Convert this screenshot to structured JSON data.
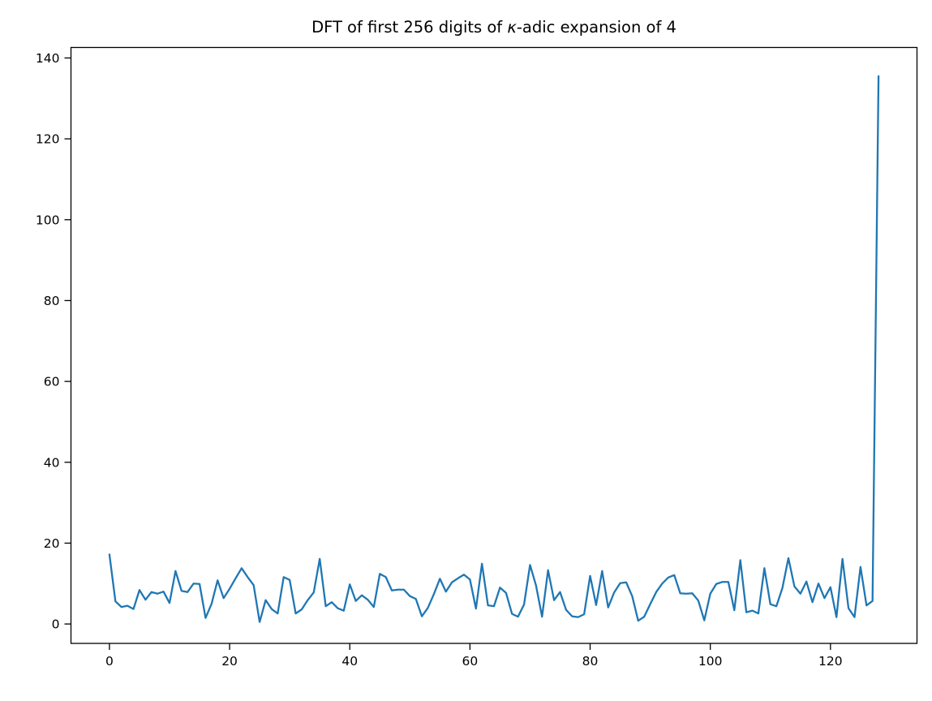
{
  "figure": {
    "background": "#ffffff"
  },
  "chart_data": {
    "type": "line",
    "title": "DFT of first 256 digits of κ-adic expansion of 4",
    "title_parts": {
      "prefix": "DFT of first 256 digits of ",
      "kappa": "κ",
      "suffix": "-adic expansion of 4"
    },
    "xlabel": "",
    "ylabel": "",
    "grid": false,
    "legend": false,
    "line_color": "#1f77b4",
    "spine_color": "#000000",
    "n_points": 129,
    "x_start": 0,
    "x_step": 1,
    "x_ticks": [
      0,
      20,
      40,
      60,
      80,
      100,
      120
    ],
    "y_ticks": [
      0,
      20,
      40,
      60,
      80,
      100,
      120,
      140
    ],
    "xlim": [
      -6.4,
      134.4
    ],
    "ylim": [
      -4.8,
      142.6
    ],
    "values": [
      17.2,
      5.6,
      4.2,
      4.5,
      3.7,
      8.4,
      6.0,
      7.9,
      7.5,
      8.0,
      5.2,
      13.1,
      8.2,
      7.9,
      10.0,
      9.9,
      1.5,
      5.0,
      10.8,
      6.4,
      8.7,
      11.3,
      13.8,
      11.6,
      9.6,
      0.5,
      5.9,
      3.7,
      2.6,
      11.6,
      10.9,
      2.6,
      3.6,
      5.9,
      7.8,
      16.1,
      4.4,
      5.4,
      3.9,
      3.3,
      9.8,
      5.7,
      7.1,
      6.0,
      4.2,
      12.4,
      11.6,
      8.3,
      8.5,
      8.5,
      6.9,
      6.2,
      1.9,
      4.0,
      7.4,
      11.2,
      8.0,
      10.3,
      11.3,
      12.2,
      11.0,
      3.8,
      14.9,
      4.6,
      4.4,
      9.0,
      7.7,
      2.5,
      1.8,
      4.8,
      14.6,
      9.5,
      1.8,
      13.3,
      5.9,
      7.9,
      3.5,
      1.9,
      1.7,
      2.4,
      11.9,
      4.7,
      13.1,
      4.1,
      7.8,
      10.1,
      10.3,
      6.9,
      0.8,
      1.8,
      4.9,
      7.9,
      10.0,
      11.5,
      12.1,
      7.6,
      7.5,
      7.6,
      5.8,
      0.9,
      7.5,
      9.9,
      10.4,
      10.4,
      3.4,
      15.8,
      2.9,
      3.3,
      2.6,
      13.8,
      4.9,
      4.4,
      8.9,
      16.3,
      9.3,
      7.5,
      10.5,
      5.4,
      10.0,
      6.4,
      9.1,
      1.7,
      16.1,
      3.9,
      1.7,
      14.1,
      4.6,
      5.7,
      135.5
    ]
  }
}
